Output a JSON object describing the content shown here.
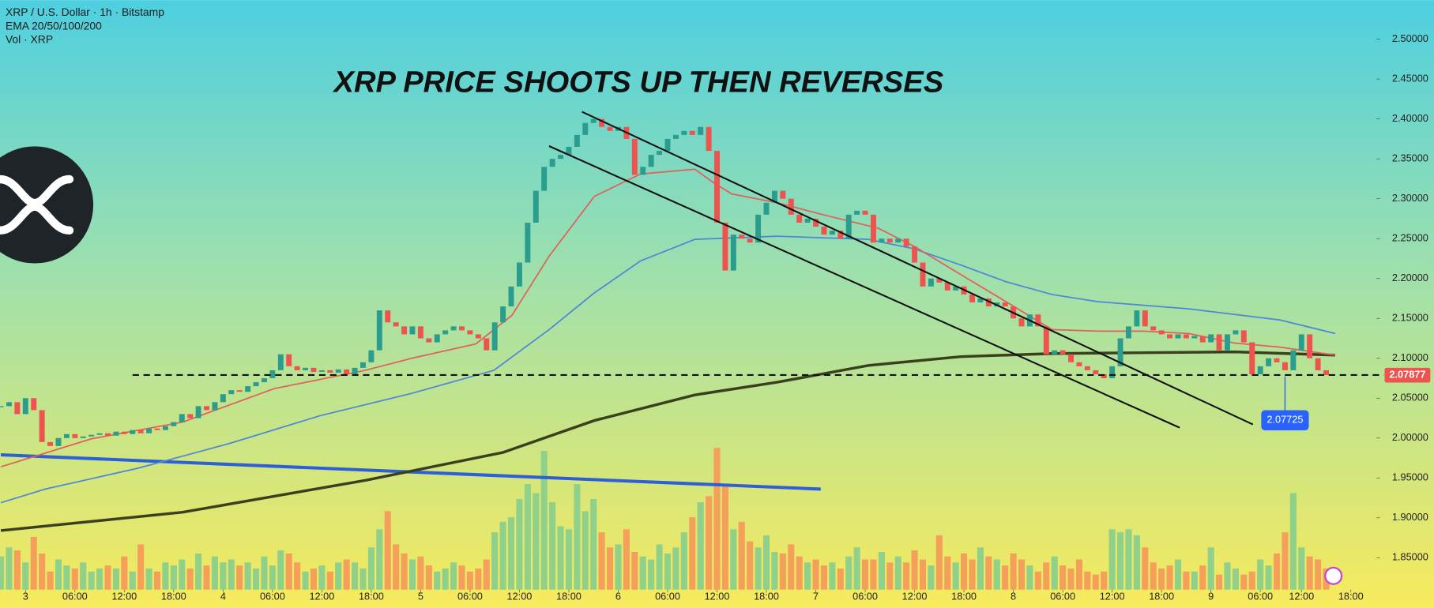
{
  "chart_data": {
    "type": "candlestick",
    "title": "XRP PRICE SHOOTS UP THEN REVERSES",
    "header": [
      "XRP / U.S. Dollar · 1h · Bitstamp",
      "EMA 20/50/100/200",
      "Vol · XRP"
    ],
    "up_color": "#2a9d8f",
    "down_color": "#ef5350",
    "volume_up_color": "#8fd08a",
    "volume_down_color": "#f5a05a",
    "xlim": [
      -0.1,
      167.1
    ],
    "ylim": [
      1.81,
      2.549
    ],
    "xticks": [
      {
        "value": 3,
        "label": "3"
      },
      {
        "value": 9,
        "label": "06:00"
      },
      {
        "value": 15,
        "label": "12:00"
      },
      {
        "value": 21,
        "label": "18:00"
      },
      {
        "value": 27,
        "label": "4"
      },
      {
        "value": 33,
        "label": "06:00"
      },
      {
        "value": 39,
        "label": "12:00"
      },
      {
        "value": 45,
        "label": "18:00"
      },
      {
        "value": 51,
        "label": "5"
      },
      {
        "value": 57,
        "label": "06:00"
      },
      {
        "value": 63,
        "label": "12:00"
      },
      {
        "value": 69,
        "label": "18:00"
      },
      {
        "value": 75,
        "label": "6"
      },
      {
        "value": 81,
        "label": "06:00"
      },
      {
        "value": 87,
        "label": "12:00"
      },
      {
        "value": 93,
        "label": "18:00"
      },
      {
        "value": 99,
        "label": "7"
      },
      {
        "value": 105,
        "label": "06:00"
      },
      {
        "value": 111,
        "label": "12:00"
      },
      {
        "value": 117,
        "label": "18:00"
      },
      {
        "value": 123,
        "label": "8"
      },
      {
        "value": 129,
        "label": "06:00"
      },
      {
        "value": 135,
        "label": "12:00"
      },
      {
        "value": 141,
        "label": "18:00"
      },
      {
        "value": 147,
        "label": "9"
      },
      {
        "value": 153,
        "label": "06:00"
      },
      {
        "value": 158,
        "label": "12:00"
      },
      {
        "value": 164,
        "label": "18:00"
      }
    ],
    "yticks": [
      {
        "value": 2.5,
        "label": "2.50000"
      },
      {
        "value": 2.45,
        "label": "2.45000"
      },
      {
        "value": 2.4,
        "label": "2.40000"
      },
      {
        "value": 2.35,
        "label": "2.35000"
      },
      {
        "value": 2.3,
        "label": "2.30000"
      },
      {
        "value": 2.25,
        "label": "2.25000"
      },
      {
        "value": 2.2,
        "label": "2.20000"
      },
      {
        "value": 2.15,
        "label": "2.15000"
      },
      {
        "value": 2.1,
        "label": "2.10000"
      },
      {
        "value": 2.05,
        "label": "2.05000"
      },
      {
        "value": 2.0,
        "label": "2.00000"
      },
      {
        "value": 1.95,
        "label": "1.95000"
      },
      {
        "value": 1.9,
        "label": "1.90000"
      },
      {
        "value": 1.85,
        "label": "1.85000"
      }
    ],
    "close": [
      2.04,
      2.045,
      2.03,
      2.05,
      2.035,
      1.995,
      1.99,
      2.0,
      2.005,
      2.0,
      2.002,
      2.004,
      2.006,
      2.003,
      2.008,
      2.005,
      2.01,
      2.006,
      2.012,
      2.01,
      2.015,
      2.02,
      2.03,
      2.025,
      2.04,
      2.035,
      2.045,
      2.055,
      2.06,
      2.058,
      2.065,
      2.07,
      2.075,
      2.085,
      2.105,
      2.09,
      2.085,
      2.088,
      2.083,
      2.085,
      2.082,
      2.086,
      2.08,
      2.088,
      2.095,
      2.11,
      2.16,
      2.145,
      2.14,
      2.13,
      2.14,
      2.125,
      2.12,
      2.13,
      2.135,
      2.14,
      2.135,
      2.13,
      2.125,
      2.11,
      2.145,
      2.165,
      2.19,
      2.22,
      2.27,
      2.31,
      2.34,
      2.35,
      2.355,
      2.365,
      2.38,
      2.395,
      2.4,
      2.39,
      2.385,
      2.39,
      2.375,
      2.33,
      2.34,
      2.355,
      2.36,
      2.375,
      2.38,
      2.385,
      2.38,
      2.39,
      2.36,
      2.27,
      2.21,
      2.255,
      2.25,
      2.245,
      2.28,
      2.295,
      2.31,
      2.3,
      2.28,
      2.27,
      2.275,
      2.265,
      2.255,
      2.26,
      2.25,
      2.28,
      2.285,
      2.28,
      2.245,
      2.25,
      2.245,
      2.25,
      2.24,
      2.22,
      2.19,
      2.2,
      2.195,
      2.185,
      2.19,
      2.18,
      2.17,
      2.175,
      2.165,
      2.17,
      2.165,
      2.15,
      2.14,
      2.155,
      2.14,
      2.105,
      2.11,
      2.105,
      2.095,
      2.09,
      2.085,
      2.08,
      2.075,
      2.09,
      2.125,
      2.14,
      2.16,
      2.14,
      2.135,
      2.13,
      2.125,
      2.13,
      2.125,
      2.128,
      2.12,
      2.13,
      2.11,
      2.13,
      2.135,
      2.12,
      2.08,
      2.09,
      2.1,
      2.095,
      2.085,
      2.11,
      2.13,
      2.1,
      2.085,
      2.079
    ],
    "volume": [
      22,
      28,
      26,
      18,
      35,
      24,
      12,
      20,
      16,
      14,
      18,
      12,
      14,
      16,
      14,
      22,
      12,
      30,
      14,
      12,
      18,
      16,
      20,
      14,
      24,
      16,
      22,
      18,
      20,
      16,
      18,
      14,
      22,
      16,
      26,
      24,
      18,
      12,
      14,
      16,
      12,
      18,
      20,
      18,
      14,
      28,
      40,
      52,
      30,
      24,
      20,
      22,
      16,
      12,
      14,
      18,
      16,
      12,
      14,
      20,
      38,
      45,
      48,
      60,
      70,
      64,
      92,
      58,
      42,
      40,
      70,
      52,
      60,
      38,
      28,
      30,
      40,
      25,
      22,
      20,
      30,
      24,
      28,
      38,
      48,
      58,
      62,
      94,
      70,
      40,
      45,
      32,
      28,
      36,
      25,
      24,
      30,
      22,
      18,
      20,
      16,
      18,
      14,
      22,
      28,
      20,
      20,
      25,
      18,
      22,
      18,
      26,
      20,
      16,
      36,
      22,
      18,
      24,
      20,
      28,
      22,
      20,
      16,
      24,
      20,
      16,
      12,
      18,
      22,
      16,
      14,
      20,
      12,
      10,
      12,
      40,
      38,
      40,
      36,
      28,
      18,
      14,
      16,
      20,
      12,
      12,
      16,
      28,
      10,
      18,
      14,
      10,
      12,
      20,
      16,
      24,
      38,
      64,
      28,
      22,
      20,
      14
    ],
    "ema_lines": [
      {
        "color": "#3a3f1e",
        "width": 3,
        "x": [
          0,
          22.1,
          44.3,
          61,
          72.1,
          84.3,
          94.3,
          105.4,
          116.6,
          127.7,
          138.8,
          149.9,
          162.1
        ],
        "values": [
          1.884,
          1.907,
          1.947,
          1.982,
          2.022,
          2.054,
          2.07,
          2.091,
          2.102,
          2.106,
          2.107,
          2.108,
          2.104
        ]
      },
      {
        "color": "#4f86d9",
        "width": 1.5,
        "x": [
          0,
          5.4,
          16.6,
          27.7,
          38.8,
          49.9,
          59.9,
          66.6,
          72.1,
          77.7,
          84.3,
          94.3,
          105.4,
          111,
          116.6,
          122.1,
          127.7,
          133.2,
          144.3,
          155.4,
          162.1
        ],
        "values": [
          1.919,
          1.936,
          1.962,
          1.993,
          2.028,
          2.056,
          2.085,
          2.136,
          2.182,
          2.222,
          2.249,
          2.253,
          2.249,
          2.237,
          2.217,
          2.196,
          2.18,
          2.171,
          2.162,
          2.148,
          2.131
        ]
      },
      {
        "color": "#e0605a",
        "width": 1.5,
        "x": [
          0,
          11,
          22.1,
          33.2,
          44.3,
          49.9,
          57.7,
          62.1,
          66.6,
          72.1,
          77.7,
          84.3,
          86.6,
          88.8,
          94.3,
          99.9,
          106.6,
          111,
          116.6,
          122.1,
          127.7,
          133.2,
          138.8,
          144.3,
          149.9,
          155.4,
          162.1
        ],
        "values": [
          1.964,
          1.999,
          2.02,
          2.062,
          2.085,
          2.1,
          2.118,
          2.154,
          2.228,
          2.303,
          2.331,
          2.337,
          2.32,
          2.306,
          2.295,
          2.28,
          2.263,
          2.24,
          2.205,
          2.171,
          2.136,
          2.134,
          2.134,
          2.131,
          2.119,
          2.114,
          2.104
        ]
      }
    ],
    "drawings": [
      {
        "color": "#2f5fd8",
        "width": 3.5,
        "dashed": false,
        "x": [
          0,
          99.6
        ],
        "y": [
          1.979,
          1.936
        ]
      },
      {
        "color": "#111111",
        "width": 1.8,
        "dashed": true,
        "x": [
          16,
          168
        ],
        "y": [
          2.079,
          2.079
        ]
      },
      {
        "color": "#111111",
        "width": 1.8,
        "dashed": false,
        "x": [
          70.6,
          152.1
        ],
        "y": [
          2.409,
          2.017
        ]
      },
      {
        "color": "#111111",
        "width": 1.8,
        "dashed": false,
        "x": [
          66.6,
          143.2
        ],
        "y": [
          2.366,
          2.013
        ]
      }
    ],
    "price_label": {
      "value": 2.07877,
      "label": "2.07877",
      "color": "#ef5350"
    },
    "callout": {
      "x": 156,
      "value": 2.07725,
      "label": "2.07725",
      "color": "#2962ff"
    }
  }
}
